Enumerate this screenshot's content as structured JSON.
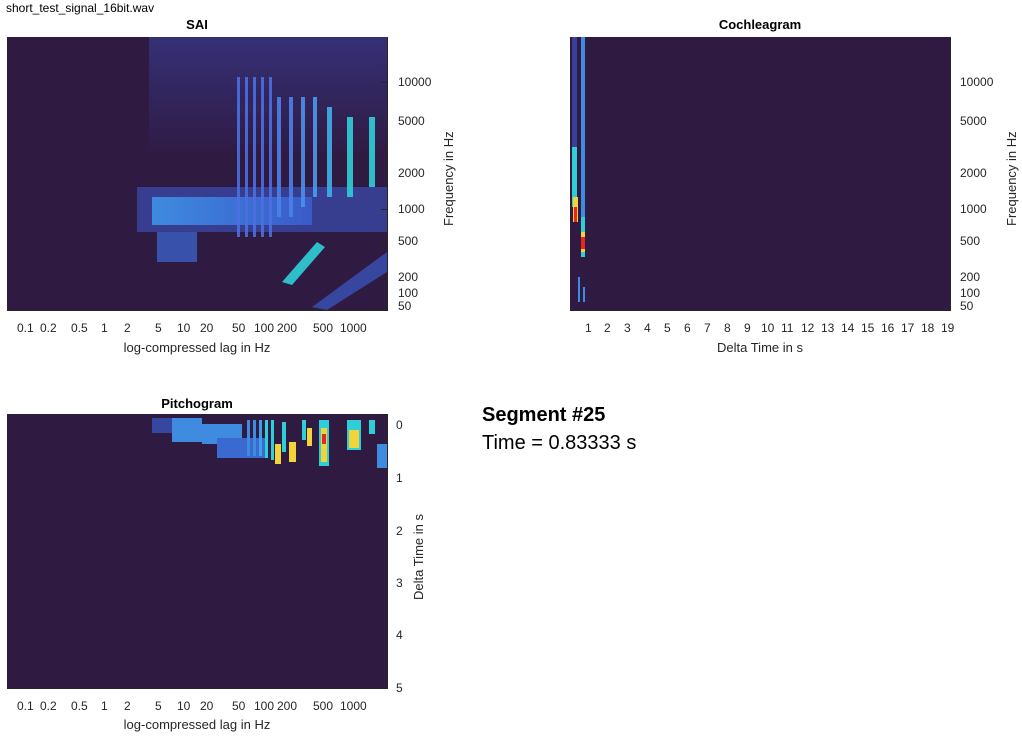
{
  "window": {
    "filename": "short_test_signal_16bit.wav"
  },
  "sai": {
    "title": "SAI",
    "xlabel": "log-compressed lag in Hz",
    "ylabel": "Frequency in Hz",
    "xticks": [
      "0.1",
      "0.2",
      "0.5",
      "1",
      "2",
      "5",
      "10",
      "20",
      "50",
      "100",
      "200",
      "500",
      "1000"
    ],
    "yticks": [
      "10000",
      "5000",
      "2000",
      "1000",
      "500",
      "200",
      "100",
      "50"
    ]
  },
  "cochleagram": {
    "title": "Cochleagram",
    "xlabel": "Delta Time in s",
    "ylabel": "Frequency in Hz",
    "xticks": [
      "1",
      "2",
      "3",
      "4",
      "5",
      "6",
      "7",
      "8",
      "9",
      "10",
      "11",
      "12",
      "13",
      "14",
      "15",
      "16",
      "17",
      "18",
      "19"
    ],
    "yticks": [
      "10000",
      "5000",
      "2000",
      "1000",
      "500",
      "200",
      "100",
      "50"
    ]
  },
  "pitchogram": {
    "title": "Pitchogram",
    "xlabel": "log-compressed lag in Hz",
    "ylabel": "Delta Time in s",
    "xticks": [
      "0.1",
      "0.2",
      "0.5",
      "1",
      "2",
      "5",
      "10",
      "20",
      "50",
      "100",
      "200",
      "500",
      "1000"
    ],
    "yticks": [
      "0",
      "1",
      "2",
      "3",
      "4",
      "5"
    ]
  },
  "info": {
    "segment": "Segment #25",
    "time": "Time = 0.83333 s"
  },
  "colors": {
    "background": "#2f1a42",
    "low": "#3a3f9a",
    "mid": "#3e8be0",
    "cyan": "#2fcfd8",
    "yellow": "#f2d33a",
    "red": "#e8261c"
  }
}
